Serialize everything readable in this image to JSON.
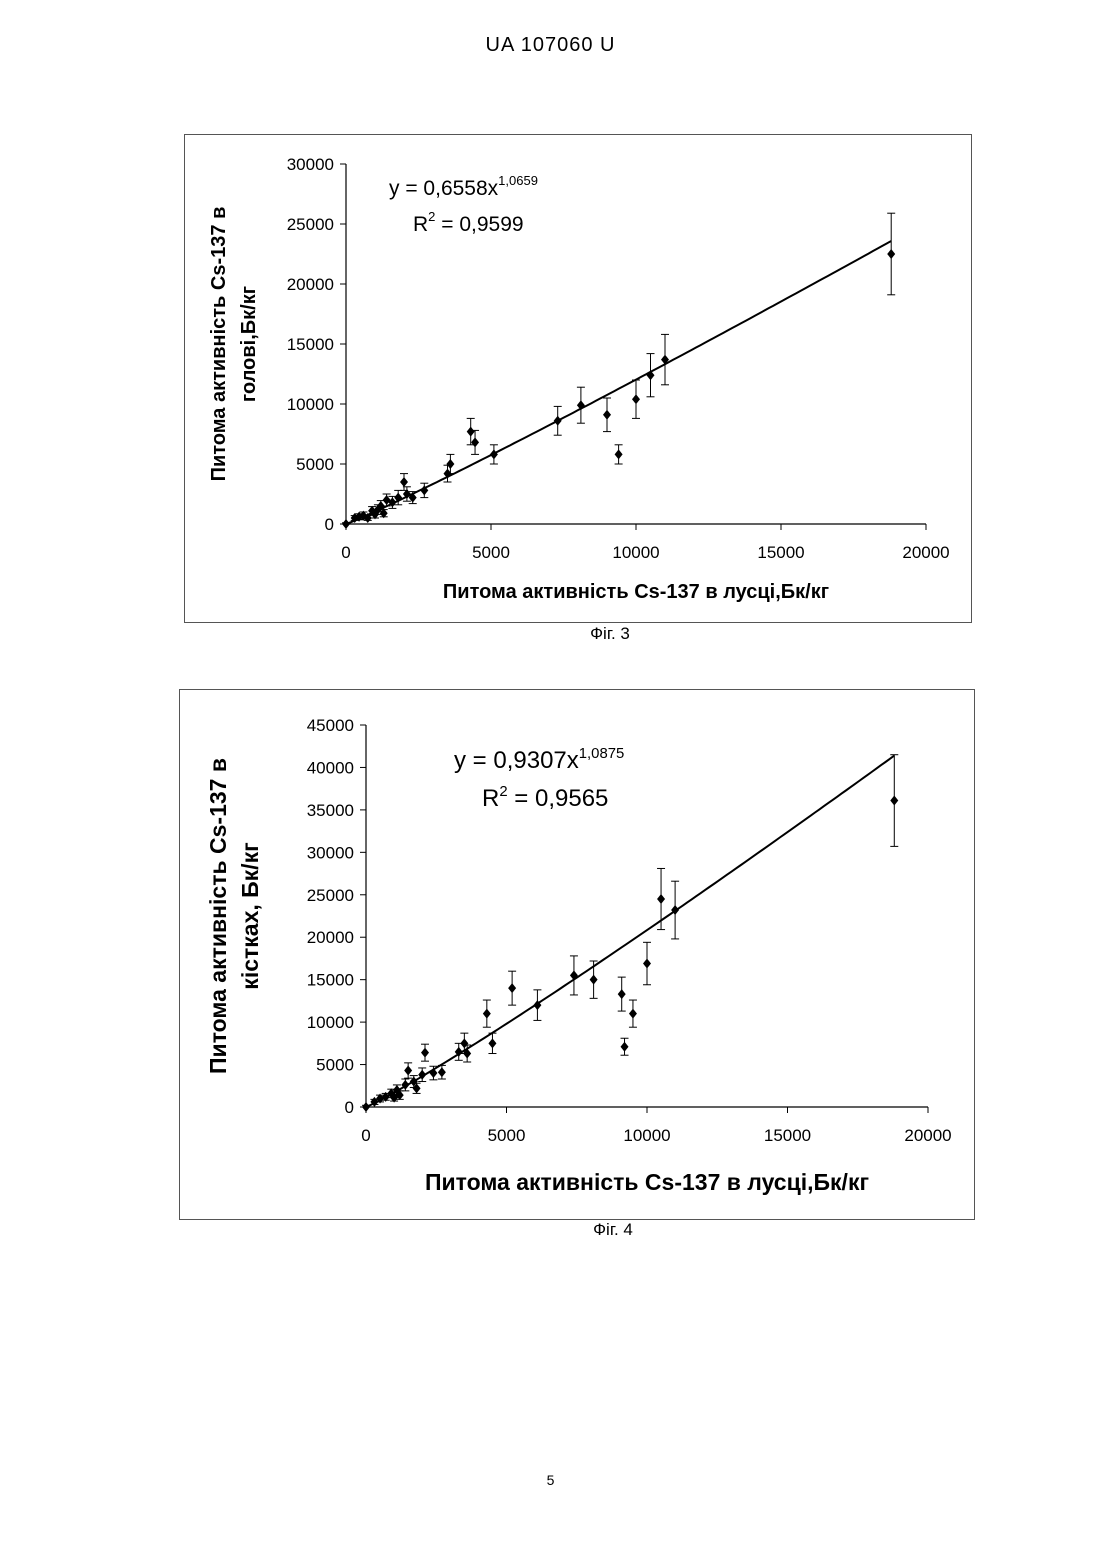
{
  "header": {
    "text": "UA   107060   U"
  },
  "page_number": "5",
  "figures": [
    {
      "caption": "Фіг. 3"
    },
    {
      "caption": "Фіг. 4"
    }
  ],
  "chart_data": [
    {
      "type": "scatter",
      "title": "",
      "xlabel": "Питома активність Cs-137 в лусці,Бк/кг",
      "ylabel_lines": [
        "Питома активність Cs-137 в",
        "голові,Бк/кг"
      ],
      "xlim": [
        0,
        20000
      ],
      "ylim": [
        0,
        30000
      ],
      "xticks": [
        "0",
        "5000",
        "10000",
        "15000",
        "20000"
      ],
      "yticks": [
        "0",
        "5000",
        "10000",
        "15000",
        "20000",
        "25000",
        "30000"
      ],
      "grid": false,
      "legend": "none",
      "equation": {
        "prefix": "y = 0,6558x",
        "exponent": "1,0659"
      },
      "r_squared": {
        "prefix": "R",
        "sup": "2",
        "suffix": " = 0,9599"
      },
      "fit": {
        "type": "power",
        "a": 0.6558,
        "b": 1.0659
      },
      "points": [
        {
          "x": 0,
          "y": 0,
          "err": 100
        },
        {
          "x": 300,
          "y": 500,
          "err": 200
        },
        {
          "x": 450,
          "y": 600,
          "err": 250
        },
        {
          "x": 600,
          "y": 700,
          "err": 300
        },
        {
          "x": 750,
          "y": 500,
          "err": 200
        },
        {
          "x": 900,
          "y": 1100,
          "err": 350
        },
        {
          "x": 1000,
          "y": 800,
          "err": 300
        },
        {
          "x": 1100,
          "y": 1200,
          "err": 400
        },
        {
          "x": 1200,
          "y": 1500,
          "err": 450
        },
        {
          "x": 1300,
          "y": 900,
          "err": 300
        },
        {
          "x": 1400,
          "y": 2000,
          "err": 500
        },
        {
          "x": 1600,
          "y": 1800,
          "err": 500
        },
        {
          "x": 1800,
          "y": 2200,
          "err": 600
        },
        {
          "x": 2000,
          "y": 3500,
          "err": 700
        },
        {
          "x": 2100,
          "y": 2500,
          "err": 600
        },
        {
          "x": 2300,
          "y": 2200,
          "err": 500
        },
        {
          "x": 2700,
          "y": 2800,
          "err": 600
        },
        {
          "x": 3500,
          "y": 4200,
          "err": 700
        },
        {
          "x": 3600,
          "y": 5000,
          "err": 800
        },
        {
          "x": 4300,
          "y": 7700,
          "err": 1100
        },
        {
          "x": 4450,
          "y": 6800,
          "err": 1000
        },
        {
          "x": 5100,
          "y": 5800,
          "err": 800
        },
        {
          "x": 7300,
          "y": 8600,
          "err": 1200
        },
        {
          "x": 8100,
          "y": 9900,
          "err": 1500
        },
        {
          "x": 9000,
          "y": 9100,
          "err": 1400
        },
        {
          "x": 9400,
          "y": 5800,
          "err": 800
        },
        {
          "x": 10000,
          "y": 10400,
          "err": 1600
        },
        {
          "x": 10500,
          "y": 12400,
          "err": 1800
        },
        {
          "x": 11000,
          "y": 13700,
          "err": 2100
        },
        {
          "x": 18800,
          "y": 22500,
          "err": 3400
        }
      ]
    },
    {
      "type": "scatter",
      "title": "",
      "xlabel": "Питома активність Cs-137 в лусці,Бк/кг",
      "ylabel_lines": [
        "Питома активність Cs-137 в",
        "кістках, Бк/кг"
      ],
      "xlim": [
        0,
        20000
      ],
      "ylim": [
        0,
        45000
      ],
      "xticks": [
        "0",
        "5000",
        "10000",
        "15000",
        "20000"
      ],
      "yticks": [
        "0",
        "5000",
        "10000",
        "15000",
        "20000",
        "25000",
        "30000",
        "35000",
        "40000",
        "45000"
      ],
      "grid": false,
      "legend": "none",
      "equation": {
        "prefix": "y = 0,9307x",
        "exponent": "1,0875"
      },
      "r_squared": {
        "prefix": "R",
        "sup": "2",
        "suffix": " = 0,9565"
      },
      "fit": {
        "type": "power",
        "a": 0.9307,
        "b": 1.0875
      },
      "points": [
        {
          "x": 0,
          "y": 0,
          "err": 200
        },
        {
          "x": 300,
          "y": 600,
          "err": 300
        },
        {
          "x": 500,
          "y": 1000,
          "err": 400
        },
        {
          "x": 700,
          "y": 1200,
          "err": 400
        },
        {
          "x": 900,
          "y": 1600,
          "err": 500
        },
        {
          "x": 1000,
          "y": 1100,
          "err": 400
        },
        {
          "x": 1100,
          "y": 2000,
          "err": 600
        },
        {
          "x": 1200,
          "y": 1400,
          "err": 500
        },
        {
          "x": 1400,
          "y": 2600,
          "err": 700
        },
        {
          "x": 1500,
          "y": 4300,
          "err": 900
        },
        {
          "x": 1700,
          "y": 3000,
          "err": 700
        },
        {
          "x": 1800,
          "y": 2200,
          "err": 600
        },
        {
          "x": 2000,
          "y": 3800,
          "err": 800
        },
        {
          "x": 2100,
          "y": 6400,
          "err": 1000
        },
        {
          "x": 2400,
          "y": 4000,
          "err": 800
        },
        {
          "x": 2700,
          "y": 4100,
          "err": 800
        },
        {
          "x": 3300,
          "y": 6500,
          "err": 1000
        },
        {
          "x": 3500,
          "y": 7500,
          "err": 1200
        },
        {
          "x": 3600,
          "y": 6300,
          "err": 1000
        },
        {
          "x": 4300,
          "y": 11000,
          "err": 1600
        },
        {
          "x": 4500,
          "y": 7500,
          "err": 1200
        },
        {
          "x": 5200,
          "y": 14000,
          "err": 2000
        },
        {
          "x": 6100,
          "y": 12000,
          "err": 1800
        },
        {
          "x": 7400,
          "y": 15500,
          "err": 2300
        },
        {
          "x": 8100,
          "y": 15000,
          "err": 2200
        },
        {
          "x": 9100,
          "y": 13300,
          "err": 2000
        },
        {
          "x": 9200,
          "y": 7100,
          "err": 1000
        },
        {
          "x": 9500,
          "y": 11000,
          "err": 1600
        },
        {
          "x": 10000,
          "y": 16900,
          "err": 2500
        },
        {
          "x": 10500,
          "y": 24500,
          "err": 3600
        },
        {
          "x": 11000,
          "y": 23200,
          "err": 3400
        },
        {
          "x": 18800,
          "y": 36100,
          "err": 5400
        }
      ]
    }
  ]
}
